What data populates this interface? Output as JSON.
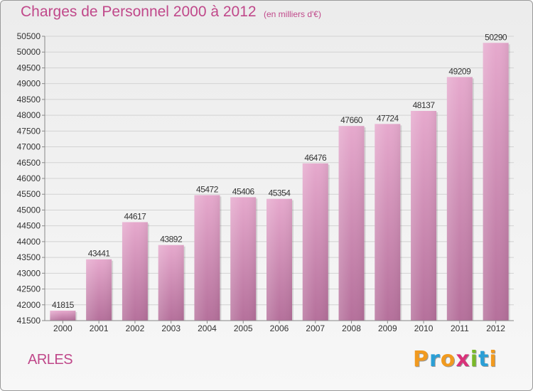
{
  "chart_data": {
    "type": "bar",
    "title": "Charges de Personnel 2000 à 2012",
    "subtitle": "(en milliers d'€)",
    "categories": [
      "2000",
      "2001",
      "2002",
      "2003",
      "2004",
      "2005",
      "2006",
      "2007",
      "2008",
      "2009",
      "2010",
      "2011",
      "2012"
    ],
    "values": [
      41815,
      43441,
      44617,
      43892,
      45472,
      45406,
      45354,
      46476,
      47660,
      47724,
      48137,
      49209,
      50290
    ],
    "ylim": [
      41500,
      50500
    ],
    "yticks": [
      41500,
      42000,
      42500,
      43000,
      43500,
      44000,
      44500,
      45000,
      45500,
      46000,
      46500,
      47000,
      47500,
      48000,
      48500,
      49000,
      49500,
      50000,
      50500
    ],
    "grid": true,
    "xlabel": "",
    "ylabel": "",
    "colors": {
      "bar_top": "#e6a9cd",
      "bar_bottom": "#b5709b",
      "text": "#c0488a"
    }
  },
  "footer": {
    "city": "ARLES",
    "logo": [
      "P",
      "r",
      "o",
      "x",
      "i",
      "t",
      "i"
    ],
    "logo_colors": [
      "#f19a1f",
      "#2a9fd6",
      "#f19a1f",
      "#d9327a",
      "#7ab929",
      "#2a9fd6",
      "#f19a1f"
    ]
  }
}
